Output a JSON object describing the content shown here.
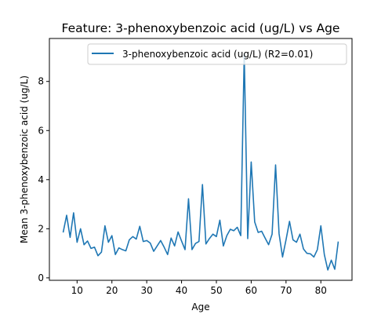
{
  "chart_data": {
    "type": "line",
    "title": "Feature: 3-phenoxybenzoic acid (ug/L) vs Age",
    "xlabel": "Age",
    "ylabel": "Mean 3-phenoxybenzoic acid (ug/L)",
    "xlim": [
      2.05,
      88.95
    ],
    "ylim": [
      -0.1,
      9.75
    ],
    "xticks": [
      10,
      20,
      30,
      40,
      50,
      60,
      70,
      80
    ],
    "yticks": [
      0,
      2,
      4,
      6,
      8
    ],
    "grid": false,
    "legend_position": "top-right",
    "series": [
      {
        "name": "3-phenoxybenzoic acid (ug/L) (R2=0.01)",
        "color": "#1f77b4",
        "x": [
          6,
          7,
          8,
          9,
          10,
          11,
          12,
          13,
          14,
          15,
          16,
          17,
          18,
          19,
          20,
          21,
          22,
          23,
          24,
          25,
          26,
          27,
          28,
          29,
          30,
          31,
          32,
          33,
          34,
          35,
          36,
          37,
          38,
          39,
          40,
          41,
          42,
          43,
          44,
          45,
          46,
          47,
          48,
          49,
          50,
          51,
          52,
          53,
          54,
          55,
          56,
          57,
          58,
          59,
          60,
          61,
          62,
          63,
          64,
          65,
          66,
          67,
          68,
          69,
          70,
          71,
          72,
          73,
          74,
          75,
          76,
          77,
          78,
          79,
          80,
          81,
          82,
          83,
          84,
          85
        ],
        "y": [
          1.85,
          2.55,
          1.65,
          2.65,
          1.45,
          2.0,
          1.35,
          1.5,
          1.2,
          1.25,
          0.9,
          1.05,
          2.12,
          1.45,
          1.72,
          0.95,
          1.22,
          1.15,
          1.1,
          1.55,
          1.68,
          1.58,
          2.1,
          1.48,
          1.52,
          1.42,
          1.08,
          1.3,
          1.52,
          1.25,
          0.95,
          1.62,
          1.3,
          1.87,
          1.5,
          1.15,
          3.22,
          1.15,
          1.4,
          1.48,
          3.8,
          1.38,
          1.6,
          1.78,
          1.68,
          2.35,
          1.3,
          1.72,
          1.98,
          1.92,
          2.06,
          1.72,
          9.12,
          1.6,
          4.72,
          2.28,
          1.85,
          1.9,
          1.62,
          1.35,
          1.78,
          4.6,
          1.8,
          0.85,
          1.55,
          2.3,
          1.55,
          1.45,
          1.78,
          1.18,
          1.0,
          0.98,
          0.85,
          1.15,
          2.12,
          0.95,
          0.32,
          0.72,
          0.35,
          1.48
        ]
      }
    ]
  }
}
